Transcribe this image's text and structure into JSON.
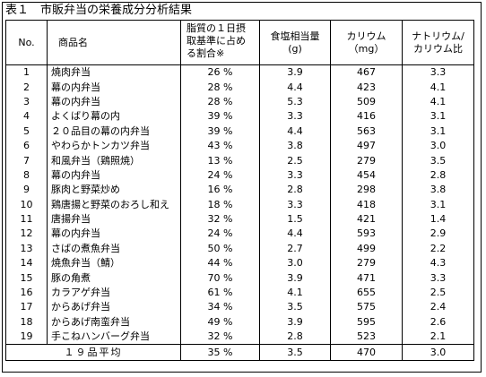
{
  "title": "表１　市販弁当の栄養成分分析結果",
  "headers": {
    "no": "No.",
    "name": "商品名",
    "fat": [
      "脂質の１日摂",
      "取基準に占め",
      "る割合※"
    ],
    "salt": [
      "食塩相当量",
      "(g)"
    ],
    "potassium": [
      "カリウム",
      "（mg）"
    ],
    "ratio": [
      "ナトリウム/",
      "カリウム比"
    ]
  },
  "rows": [
    {
      "no": "1",
      "name": "焼肉弁当",
      "fat": "26 %",
      "salt": "3.9",
      "k": "467",
      "ratio": "3.3"
    },
    {
      "no": "2",
      "name": "幕の内弁当",
      "fat": "28 %",
      "salt": "4.4",
      "k": "423",
      "ratio": "4.1"
    },
    {
      "no": "3",
      "name": "幕の内弁当",
      "fat": "28 %",
      "salt": "5.3",
      "k": "509",
      "ratio": "4.1"
    },
    {
      "no": "4",
      "name": "よくばり幕の内",
      "fat": "39 %",
      "salt": "3.3",
      "k": "416",
      "ratio": "3.1"
    },
    {
      "no": "5",
      "name": "２０品目の幕の内弁当",
      "fat": "39 %",
      "salt": "4.4",
      "k": "563",
      "ratio": "3.1"
    },
    {
      "no": "6",
      "name": "やわらかトンカツ弁当",
      "fat": "43 %",
      "salt": "3.8",
      "k": "497",
      "ratio": "3.0"
    },
    {
      "no": "7",
      "name": "和風弁当（鶏照焼）",
      "fat": "13 %",
      "salt": "2.5",
      "k": "279",
      "ratio": "3.5"
    },
    {
      "no": "8",
      "name": "幕の内弁当",
      "fat": "24 %",
      "salt": "3.3",
      "k": "454",
      "ratio": "2.8"
    },
    {
      "no": "9",
      "name": "豚肉と野菜炒め",
      "fat": "16 %",
      "salt": "2.8",
      "k": "298",
      "ratio": "3.8"
    },
    {
      "no": "10",
      "name": "鶏唐揚と野菜のおろし和え",
      "fat": "18 %",
      "salt": "3.3",
      "k": "418",
      "ratio": "3.1"
    },
    {
      "no": "11",
      "name": "唐揚弁当",
      "fat": "32 %",
      "salt": "1.5",
      "k": "421",
      "ratio": "1.4"
    },
    {
      "no": "12",
      "name": "幕の内弁当",
      "fat": "24 %",
      "salt": "4.4",
      "k": "593",
      "ratio": "2.9"
    },
    {
      "no": "13",
      "name": "さばの煮魚弁当",
      "fat": "50 %",
      "salt": "2.7",
      "k": "499",
      "ratio": "2.2"
    },
    {
      "no": "14",
      "name": "焼魚弁当（鯖）",
      "fat": "44 %",
      "salt": "3.0",
      "k": "279",
      "ratio": "4.3"
    },
    {
      "no": "15",
      "name": "豚の角煮",
      "fat": "70 %",
      "salt": "3.9",
      "k": "471",
      "ratio": "3.3"
    },
    {
      "no": "16",
      "name": "カラアゲ弁当",
      "fat": "61 %",
      "salt": "4.1",
      "k": "655",
      "ratio": "2.5"
    },
    {
      "no": "17",
      "name": "からあげ弁当",
      "fat": "34 %",
      "salt": "3.5",
      "k": "575",
      "ratio": "2.4"
    },
    {
      "no": "18",
      "name": "からあげ南蛮弁当",
      "fat": "49 %",
      "salt": "3.9",
      "k": "595",
      "ratio": "2.6"
    },
    {
      "no": "19",
      "name": "手こねハンバーグ弁当",
      "fat": "32 %",
      "salt": "2.8",
      "k": "523",
      "ratio": "2.1"
    }
  ],
  "average": {
    "label": "１９品平均",
    "fat": "35 %",
    "salt": "3.5",
    "k": "470",
    "ratio": "3.0"
  }
}
